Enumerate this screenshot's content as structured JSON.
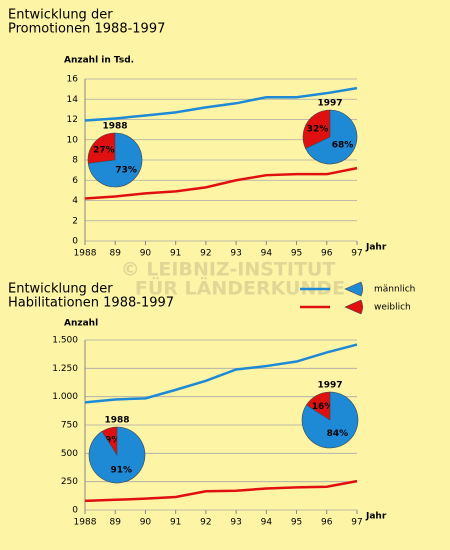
{
  "chart_data": [
    {
      "type": "line",
      "title": [
        "Entwicklung der",
        "Promotionen 1988-1997"
      ],
      "y_label": "Anzahl in Tsd.",
      "x_label": "Jahr",
      "categories": [
        "1988",
        "89",
        "90",
        "91",
        "92",
        "93",
        "94",
        "95",
        "96",
        "97"
      ],
      "series": [
        {
          "name": "männlich",
          "color": "#1e8ad6",
          "values": [
            11.9,
            12.1,
            12.4,
            12.7,
            13.2,
            13.6,
            14.2,
            14.2,
            14.6,
            15.1
          ]
        },
        {
          "name": "weiblich",
          "color": "#e01010",
          "values": [
            4.2,
            4.4,
            4.7,
            4.9,
            5.3,
            6.0,
            6.5,
            6.6,
            6.6,
            7.2
          ]
        }
      ],
      "ylim": [
        0,
        16
      ],
      "yticks": [
        0,
        2,
        4,
        6,
        8,
        10,
        12,
        14,
        16
      ],
      "grid": true,
      "pies": [
        {
          "label": "1988",
          "values": [
            27,
            73
          ],
          "value_labels": [
            "27%",
            "73%"
          ]
        },
        {
          "label": "1997",
          "values": [
            32,
            68
          ],
          "value_labels": [
            "32%",
            "68%"
          ]
        }
      ]
    },
    {
      "type": "line",
      "title": [
        "Entwicklung der",
        "Habilitationen 1988-1997"
      ],
      "y_label": "Anzahl",
      "x_label": "Jahr",
      "categories": [
        "1988",
        "89",
        "90",
        "91",
        "92",
        "93",
        "94",
        "95",
        "96",
        "97"
      ],
      "series": [
        {
          "name": "männlich",
          "color": "#1e8ad6",
          "values": [
            950,
            975,
            985,
            1060,
            1140,
            1240,
            1270,
            1310,
            1390,
            1460
          ]
        },
        {
          "name": "weiblich",
          "color": "#e01010",
          "values": [
            80,
            90,
            100,
            115,
            165,
            170,
            190,
            200,
            205,
            255
          ]
        }
      ],
      "ylim": [
        0,
        1500
      ],
      "yticks": [
        0,
        250,
        500,
        750,
        {
          "value": 1000,
          "label": "1.000"
        },
        {
          "value": 1250,
          "label": "1.250"
        },
        {
          "value": 1500,
          "label": "1.500"
        }
      ],
      "grid": true,
      "pies": [
        {
          "label": "1988",
          "values": [
            9,
            91
          ],
          "value_labels": [
            "9%",
            "91%"
          ]
        },
        {
          "label": "1997",
          "values": [
            16,
            84
          ],
          "value_labels": [
            "16%",
            "84%"
          ]
        }
      ]
    }
  ],
  "watermark": [
    "© LEIBNIZ-INSTITUT",
    "FÜR LÄNDERKUNDE"
  ]
}
